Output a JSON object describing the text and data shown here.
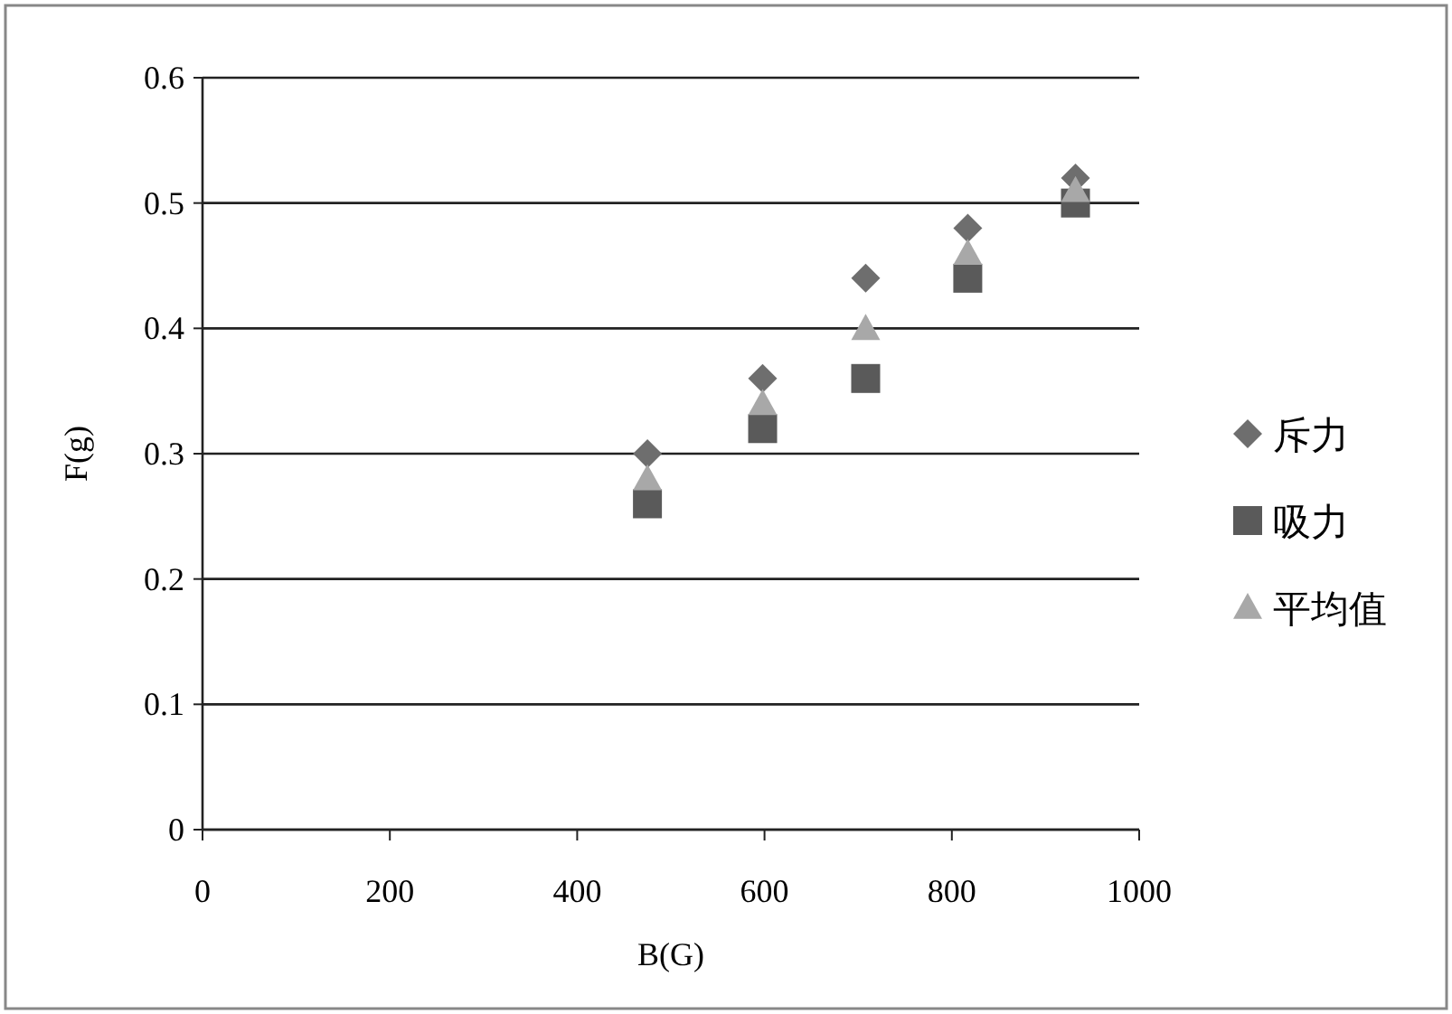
{
  "chart_data": {
    "type": "scatter",
    "xlabel": "B(G)",
    "ylabel": "F(g)",
    "xlim": [
      0,
      1000
    ],
    "ylim": [
      0,
      0.6
    ],
    "xticks": [
      0,
      200,
      400,
      600,
      800,
      1000
    ],
    "yticks": [
      0,
      0.1,
      0.2,
      0.3,
      0.4,
      0.5,
      0.6
    ],
    "grid": "y",
    "legend": "right",
    "x": [
      475,
      598,
      708,
      817,
      932
    ],
    "series": [
      {
        "name": "斥力",
        "color": "#6e6e6e",
        "marker": "diamond",
        "values": [
          0.3,
          0.36,
          0.44,
          0.48,
          0.52
        ]
      },
      {
        "name": "吸力",
        "color": "#5a5a5a",
        "marker": "square",
        "values": [
          0.26,
          0.32,
          0.36,
          0.44,
          0.5
        ]
      },
      {
        "name": "平均值",
        "color": "#a8a8a8",
        "marker": "triangle",
        "values": [
          0.28,
          0.34,
          0.4,
          0.46,
          0.51
        ]
      }
    ]
  }
}
